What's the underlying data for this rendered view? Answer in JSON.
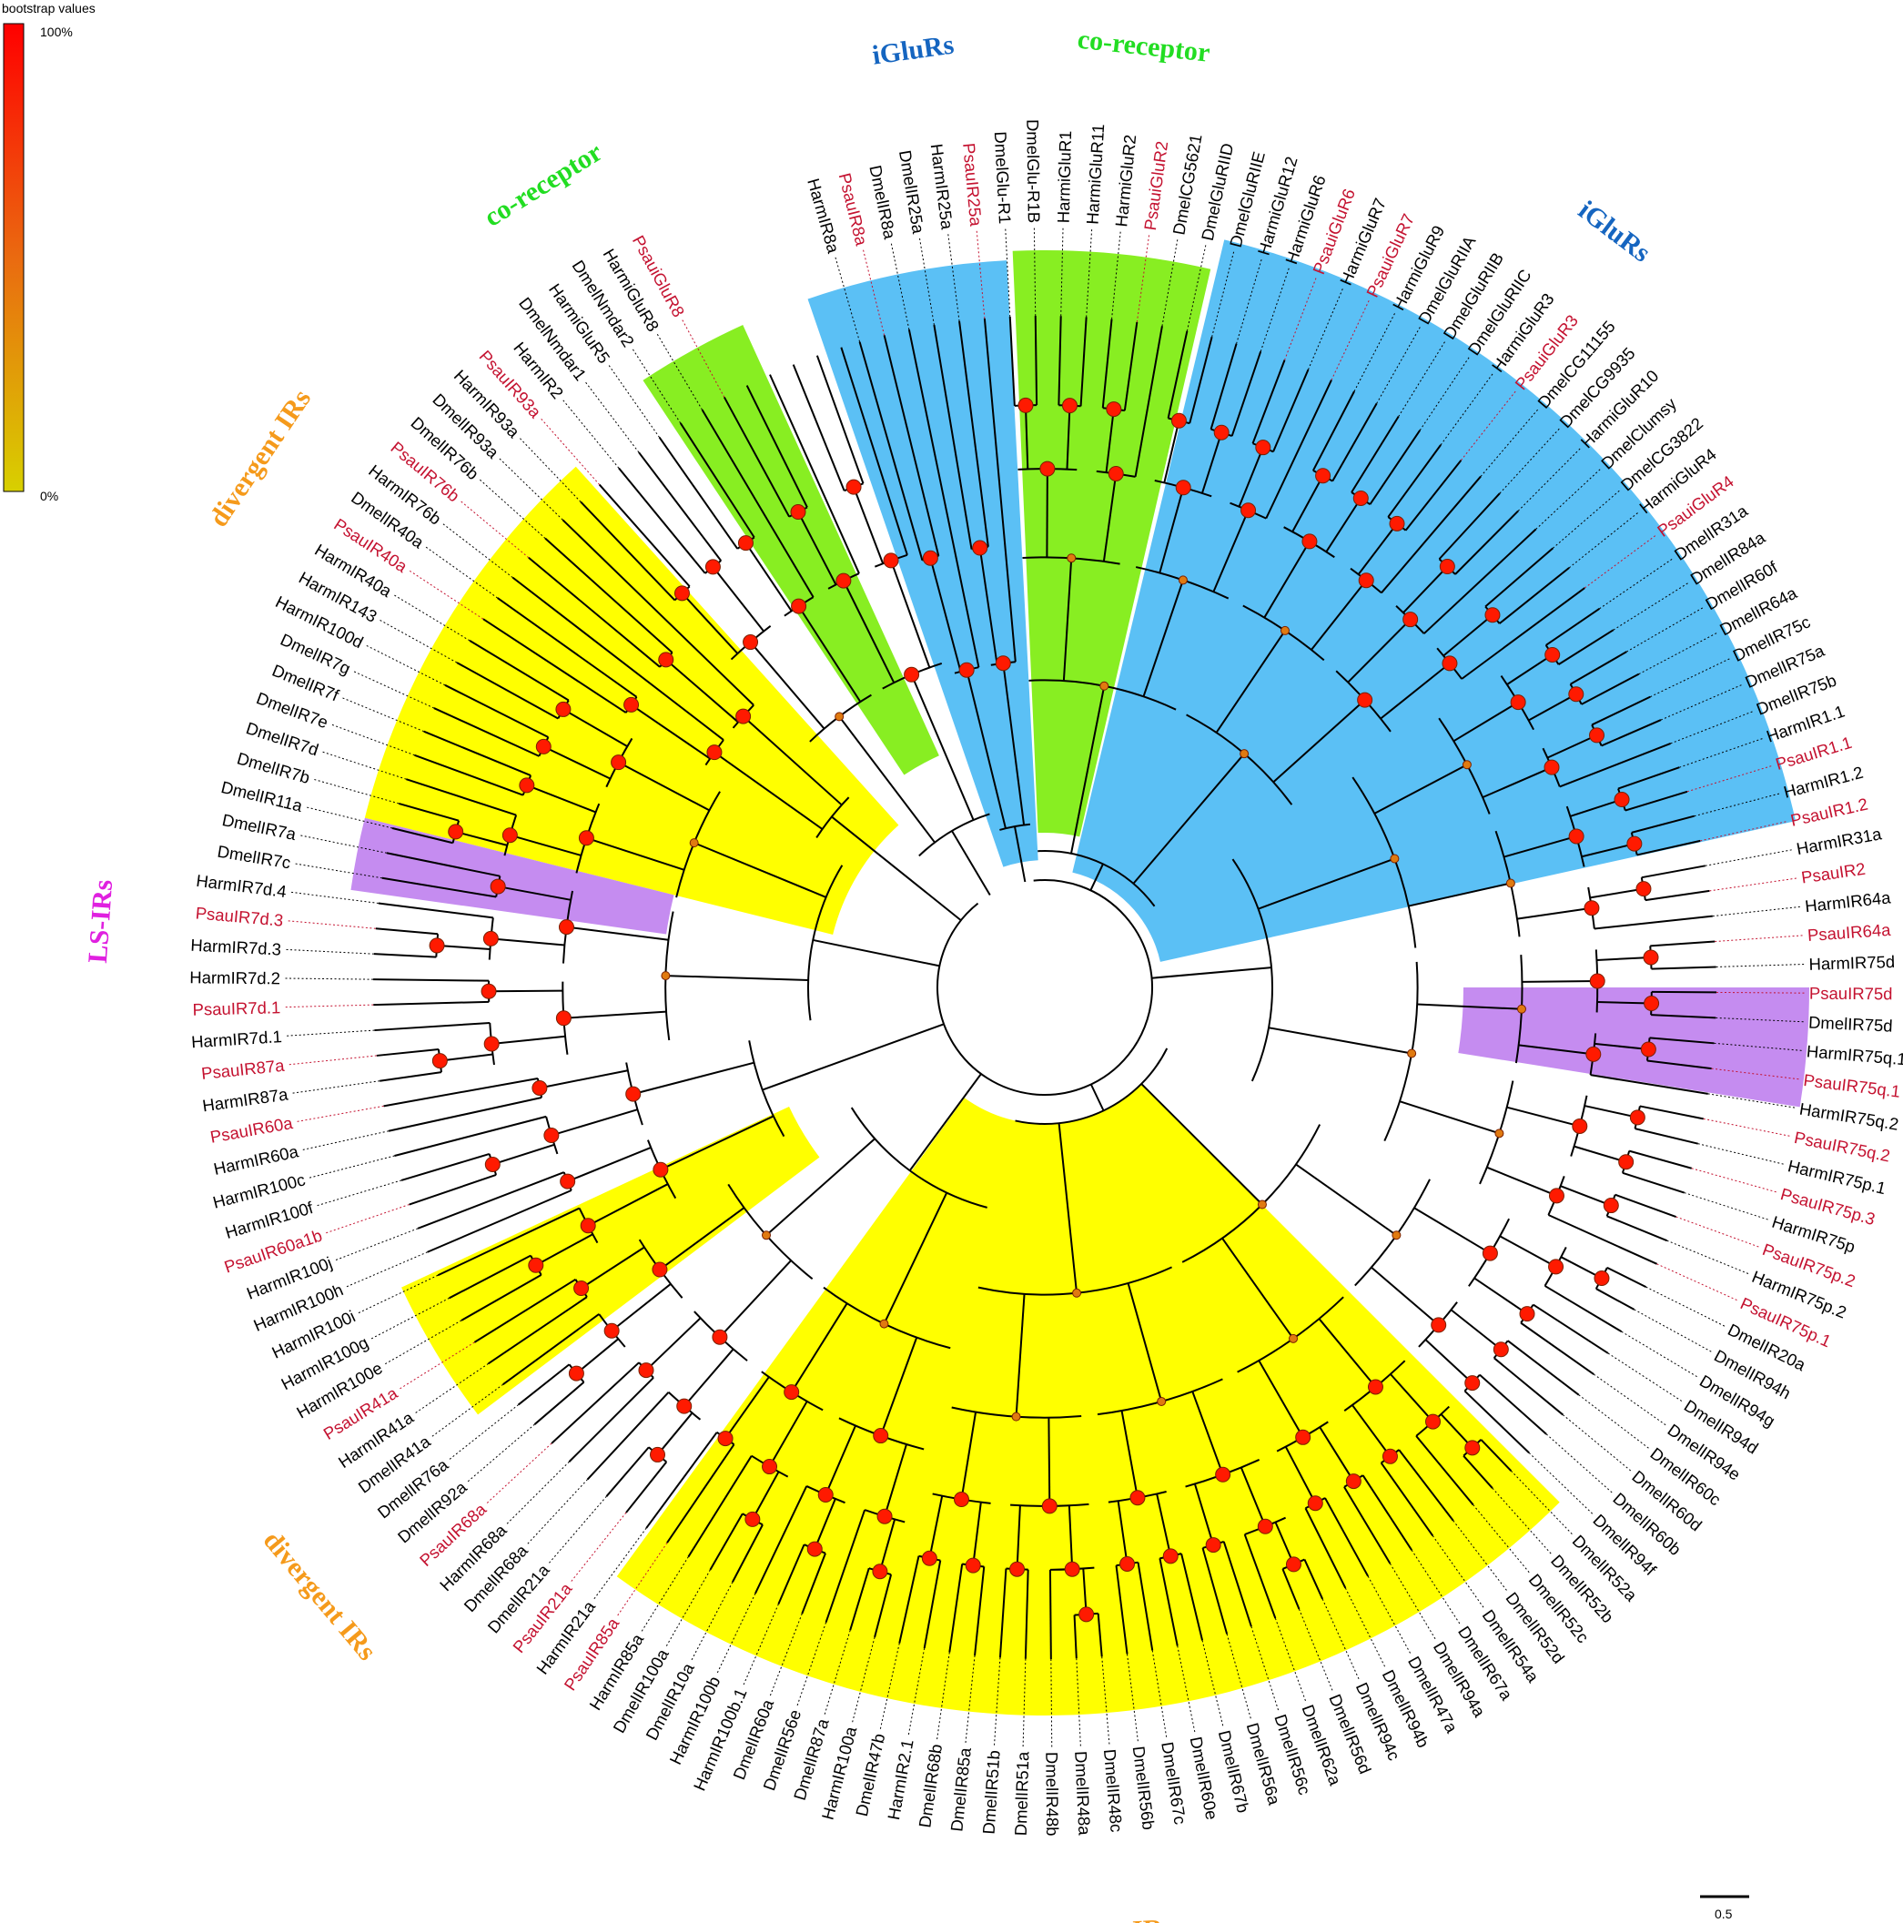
{
  "legend": {
    "title": "bootstrap values",
    "max_label": "100%",
    "min_label": "0%",
    "color_high": "#ff0000",
    "color_low": "#d8d000"
  },
  "scale_bar": {
    "label": "0.5"
  },
  "colors": {
    "psau_label": "#c41230",
    "other_label": "#000000",
    "iglur_clade": "#5bc0f5",
    "coreceptor_clade": "#88ee22",
    "lsir_clade": "#c58cf0",
    "divergent_clade": "#ffff00",
    "iglur_text": "#1565c0",
    "coreceptor_text": "#22dd22",
    "lsir_text": "#e020e0",
    "divergent_text": "#f59a1b"
  },
  "clade_labels": [
    {
      "text": "iGluRs",
      "color": "iglur_text",
      "ang": -98
    },
    {
      "text": "co-receptor",
      "color": "coreceptor_text",
      "ang": -84
    },
    {
      "text": "iGluRs",
      "color": "iglur_text",
      "ang": -53
    },
    {
      "text": "co-receptor",
      "color": "coreceptor_text",
      "ang": -122
    },
    {
      "text": "divergent IRs",
      "color": "divergent_text",
      "ang": -146
    },
    {
      "text": "LS-IRs",
      "color": "lsir_text",
      "ang": -176
    },
    {
      "text": "LS-IRs",
      "color": "lsir_text",
      "ang": 5
    },
    {
      "text": "divergent IRs",
      "color": "divergent_text",
      "ang": 140
    },
    {
      "text": "divergent IRs",
      "color": "divergent_text",
      "ang": 87
    }
  ],
  "highlight_sectors": [
    {
      "color": "iglur_clade",
      "a0": -109,
      "a1": -93,
      "rin": 140,
      "rout": 800
    },
    {
      "color": "coreceptor_clade",
      "a0": -92.5,
      "a1": -77,
      "rin": 170,
      "rout": 810
    },
    {
      "color": "iglur_clade",
      "a0": -76.5,
      "a1": -12.5,
      "rin": 130,
      "rout": 845
    },
    {
      "color": "coreceptor_clade",
      "a0": -123.5,
      "a1": -114.5,
      "rin": 280,
      "rout": 800
    },
    {
      "color": "divergent_clade",
      "a0": -166,
      "a1": -132,
      "rin": 240,
      "rout": 770
    },
    {
      "color": "lsir_clade",
      "a0": -172,
      "a1": -166,
      "rin": 420,
      "rout": 770
    },
    {
      "color": "lsir_clade",
      "a0": 0,
      "a1": 9,
      "rin": 460,
      "rout": 840
    },
    {
      "color": "divergent_clade",
      "a0": 143,
      "a1": 155,
      "rin": 310,
      "rout": 780
    },
    {
      "color": "divergent_clade",
      "a0": 45,
      "a1": 126,
      "rin": 150,
      "rout": 800
    }
  ],
  "leaves": [
    {
      "label": "HarmIR8a",
      "red": false
    },
    {
      "label": "PsauIR8a",
      "red": true
    },
    {
      "label": "DmelIR8a",
      "red": false
    },
    {
      "label": "DmelIR25a",
      "red": false
    },
    {
      "label": "HarmIR25a",
      "red": false
    },
    {
      "label": "PsauIR25a",
      "red": true
    },
    {
      "label": "DmelGlu-R1",
      "red": false
    },
    {
      "label": "DmelGlu-R1B",
      "red": false
    },
    {
      "label": "HarmiGluR1",
      "red": false
    },
    {
      "label": "HarmiGluR11",
      "red": false
    },
    {
      "label": "HarmiGluR2",
      "red": false
    },
    {
      "label": "PsauiGluR2",
      "red": true
    },
    {
      "label": "DmelCG5621",
      "red": false
    },
    {
      "label": "DmelGluRIID",
      "red": false
    },
    {
      "label": "DmelGluRIIE",
      "red": false
    },
    {
      "label": "HarmiGluR12",
      "red": false
    },
    {
      "label": "HarmiGluR6",
      "red": false
    },
    {
      "label": "PsauiGluR6",
      "red": true
    },
    {
      "label": "HarmiGluR7",
      "red": false
    },
    {
      "label": "PsauiGluR7",
      "red": true
    },
    {
      "label": "HarmiGluR9",
      "red": false
    },
    {
      "label": "DmelGluRIIA",
      "red": false
    },
    {
      "label": "DmelGluRIIB",
      "red": false
    },
    {
      "label": "DmelGluRIIC",
      "red": false
    },
    {
      "label": "HarmiGluR3",
      "red": false
    },
    {
      "label": "PsauiGluR3",
      "red": true
    },
    {
      "label": "DmelCG11155",
      "red": false
    },
    {
      "label": "DmelCG9935",
      "red": false
    },
    {
      "label": "HarmiGluR10",
      "red": false
    },
    {
      "label": "DmelClumsy",
      "red": false
    },
    {
      "label": "DmelCG3822",
      "red": false
    },
    {
      "label": "HarmiGluR4",
      "red": false
    },
    {
      "label": "PsauiGluR4",
      "red": true
    },
    {
      "label": "DmelIR31a",
      "red": false
    },
    {
      "label": "DmelIR84a",
      "red": false
    },
    {
      "label": "DmelIR60f",
      "red": false
    },
    {
      "label": "DmelIR64a",
      "red": false
    },
    {
      "label": "DmelIR75c",
      "red": false
    },
    {
      "label": "DmelIR75a",
      "red": false
    },
    {
      "label": "DmelIR75b",
      "red": false
    },
    {
      "label": "HarmIR1.1",
      "red": false
    },
    {
      "label": "PsauIR1.1",
      "red": true
    },
    {
      "label": "HarmIR1.2",
      "red": false
    },
    {
      "label": "PsauIR1.2",
      "red": true
    },
    {
      "label": "HarmIR31a",
      "red": false
    },
    {
      "label": "PsauIR2",
      "red": true
    },
    {
      "label": "HarmIR64a",
      "red": false
    },
    {
      "label": "PsauIR64a",
      "red": true
    },
    {
      "label": "HarmIR75d",
      "red": false
    },
    {
      "label": "PsauIR75d",
      "red": true
    },
    {
      "label": "DmelIR75d",
      "red": false
    },
    {
      "label": "HarmIR75q.1",
      "red": false
    },
    {
      "label": "PsauIR75q.1",
      "red": true
    },
    {
      "label": "HarmIR75q.2",
      "red": false
    },
    {
      "label": "PsauIR75q.2",
      "red": true
    },
    {
      "label": "HarmIR75p.1",
      "red": false
    },
    {
      "label": "PsauIR75p.3",
      "red": true
    },
    {
      "label": "HarmIR75p",
      "red": false
    },
    {
      "label": "PsauIR75p.2",
      "red": true
    },
    {
      "label": "HarmIR75p.2",
      "red": false
    },
    {
      "label": "PsauIR75p.1",
      "red": true
    },
    {
      "label": "DmelIR20a",
      "red": false
    },
    {
      "label": "DmelIR94h",
      "red": false
    },
    {
      "label": "DmelIR94g",
      "red": false
    },
    {
      "label": "DmelIR94d",
      "red": false
    },
    {
      "label": "DmelIR94e",
      "red": false
    },
    {
      "label": "DmelIR60c",
      "red": false
    },
    {
      "label": "DmelIR60d",
      "red": false
    },
    {
      "label": "DmelIR60b",
      "red": false
    },
    {
      "label": "DmelIR94f",
      "red": false
    },
    {
      "label": "DmelIR52a",
      "red": false
    },
    {
      "label": "DmelIR52b",
      "red": false
    },
    {
      "label": "DmelIR52c",
      "red": false
    },
    {
      "label": "DmelIR52d",
      "red": false
    },
    {
      "label": "DmelIR54a",
      "red": false
    },
    {
      "label": "DmelIR67a",
      "red": false
    },
    {
      "label": "DmelIR94a",
      "red": false
    },
    {
      "label": "DmelIR47a",
      "red": false
    },
    {
      "label": "DmelIR94b",
      "red": false
    },
    {
      "label": "DmelIR94c",
      "red": false
    },
    {
      "label": "DmelIR56d",
      "red": false
    },
    {
      "label": "DmelIR62a",
      "red": false
    },
    {
      "label": "DmelIR56c",
      "red": false
    },
    {
      "label": "DmelIR56a",
      "red": false
    },
    {
      "label": "DmelIR67b",
      "red": false
    },
    {
      "label": "DmelIR60e",
      "red": false
    },
    {
      "label": "DmelIR67c",
      "red": false
    },
    {
      "label": "DmelIR56b",
      "red": false
    },
    {
      "label": "DmelIR48c",
      "red": false
    },
    {
      "label": "DmelIR48a",
      "red": false
    },
    {
      "label": "DmelIR48b",
      "red": false
    },
    {
      "label": "DmelIR51a",
      "red": false
    },
    {
      "label": "DmelIR51b",
      "red": false
    },
    {
      "label": "DmelIR85a",
      "red": false
    },
    {
      "label": "DmelIR68b",
      "red": false
    },
    {
      "label": "HarmIR2.1",
      "red": false
    },
    {
      "label": "DmelIR47b",
      "red": false
    },
    {
      "label": "HarmIR100a",
      "red": false
    },
    {
      "label": "DmelIR87a",
      "red": false
    },
    {
      "label": "DmelIR56e",
      "red": false
    },
    {
      "label": "DmelIR60a",
      "red": false
    },
    {
      "label": "HarmIR100b.1",
      "red": false
    },
    {
      "label": "HarmIR100b",
      "red": false
    },
    {
      "label": "DmelIR10a",
      "red": false
    },
    {
      "label": "DmelIR100a",
      "red": false
    },
    {
      "label": "HarmIR85a",
      "red": false
    },
    {
      "label": "PsauIR85a",
      "red": true
    },
    {
      "label": "HarmIR21a",
      "red": false
    },
    {
      "label": "PsauIR21a",
      "red": true
    },
    {
      "label": "DmelIR21a",
      "red": false
    },
    {
      "label": "DmelIR68a",
      "red": false
    },
    {
      "label": "HarmIR68a",
      "red": false
    },
    {
      "label": "PsauIR68a",
      "red": true
    },
    {
      "label": "DmelIR92a",
      "red": false
    },
    {
      "label": "DmelIR76a",
      "red": false
    },
    {
      "label": "DmelIR41a",
      "red": false
    },
    {
      "label": "HarmIR41a",
      "red": false
    },
    {
      "label": "PsauIR41a",
      "red": true
    },
    {
      "label": "HarmIR100e",
      "red": false
    },
    {
      "label": "HarmIR100g",
      "red": false
    },
    {
      "label": "HarmIR100i",
      "red": false
    },
    {
      "label": "HarmIR100h",
      "red": false
    },
    {
      "label": "HarmIR100j",
      "red": false
    },
    {
      "label": "PsauIR60a1b",
      "red": true
    },
    {
      "label": "HarmIR100f",
      "red": false
    },
    {
      "label": "HarmIR100c",
      "red": false
    },
    {
      "label": "HarmIR60a",
      "red": false
    },
    {
      "label": "PsauIR60a",
      "red": true
    },
    {
      "label": "HarmIR87a",
      "red": false
    },
    {
      "label": "PsauIR87a",
      "red": true
    },
    {
      "label": "HarmIR7d.1",
      "red": false
    },
    {
      "label": "PsauIR7d.1",
      "red": true
    },
    {
      "label": "HarmIR7d.2",
      "red": false
    },
    {
      "label": "HarmIR7d.3",
      "red": false
    },
    {
      "label": "PsauIR7d.3",
      "red": true
    },
    {
      "label": "HarmIR7d.4",
      "red": false
    },
    {
      "label": "DmelIR7c",
      "red": false
    },
    {
      "label": "DmelIR7a",
      "red": false
    },
    {
      "label": "DmelIR11a",
      "red": false
    },
    {
      "label": "DmelIR7b",
      "red": false
    },
    {
      "label": "DmelIR7d",
      "red": false
    },
    {
      "label": "DmelIR7e",
      "red": false
    },
    {
      "label": "DmelIR7f",
      "red": false
    },
    {
      "label": "DmelIR7g",
      "red": false
    },
    {
      "label": "HarmIR100d",
      "red": false
    },
    {
      "label": "HarmIR143",
      "red": false
    },
    {
      "label": "HarmIR40a",
      "red": false
    },
    {
      "label": "PsauIR40a",
      "red": true
    },
    {
      "label": "DmelIR40a",
      "red": false
    },
    {
      "label": "HarmIR76b",
      "red": false
    },
    {
      "label": "PsauIR76b",
      "red": true
    },
    {
      "label": "DmelIR76b",
      "red": false
    },
    {
      "label": "DmelIR93a",
      "red": false
    },
    {
      "label": "HarmIR93a",
      "red": false
    },
    {
      "label": "PsauIR93a",
      "red": true
    },
    {
      "label": "HarmIR2",
      "red": false
    },
    {
      "label": "DmelNmdar1",
      "red": false
    },
    {
      "label": "HarmiGluR5",
      "red": false
    },
    {
      "label": "DmelNmdar2",
      "red": false
    },
    {
      "label": "HarmiGluR8",
      "red": false
    },
    {
      "label": "PsauiGluR8",
      "red": true
    }
  ]
}
